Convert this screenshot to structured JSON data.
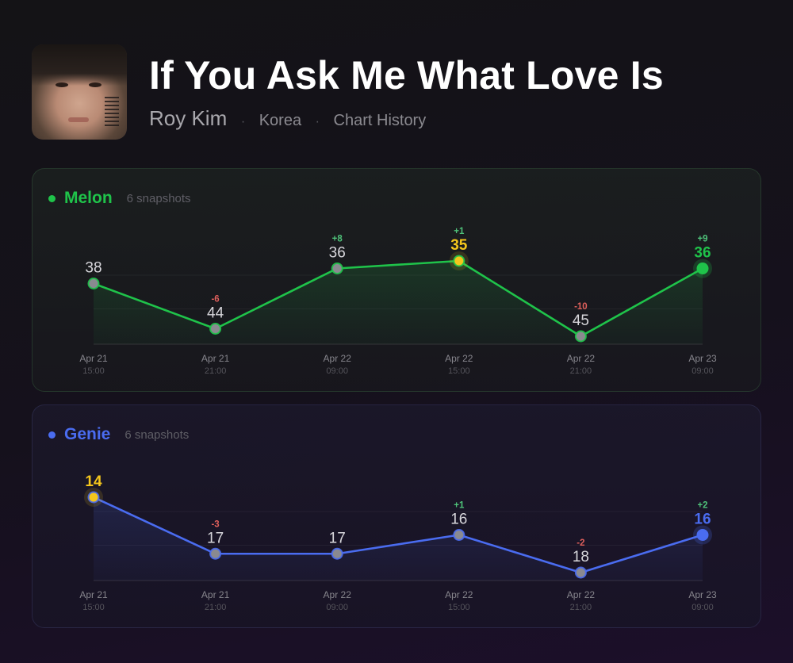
{
  "song": {
    "title": "If You Ask Me What Love Is",
    "artist": "Roy Kim",
    "region": "Korea",
    "section": "Chart History"
  },
  "cards": [
    {
      "platform": "Melon",
      "snapshots": "6 snapshots",
      "color": "#1fc34a"
    },
    {
      "platform": "Genie",
      "snapshots": "6 snapshots",
      "color": "#4a6cf0"
    }
  ],
  "chart_data": [
    {
      "type": "line",
      "name": "Melon",
      "x": [
        "Apr 21 15:00",
        "Apr 21 21:00",
        "Apr 22 09:00",
        "Apr 22 15:00",
        "Apr 22 21:00",
        "Apr 23 09:00"
      ],
      "x_date": [
        "Apr 21",
        "Apr 21",
        "Apr 22",
        "Apr 22",
        "Apr 22",
        "Apr 23"
      ],
      "x_time": [
        "15:00",
        "21:00",
        "09:00",
        "15:00",
        "21:00",
        "09:00"
      ],
      "ranks": [
        38,
        44,
        36,
        35,
        45,
        36
      ],
      "changes": [
        "",
        "-6",
        "+8",
        "+1",
        "-10",
        "+9"
      ],
      "best_index": 3,
      "latest_index": 5,
      "color": "#1fc34a",
      "highlight_color": "#f4c61c",
      "up_color": "#4fc37a",
      "down_color": "#e0605c"
    },
    {
      "type": "line",
      "name": "Genie",
      "x": [
        "Apr 21 15:00",
        "Apr 21 21:00",
        "Apr 22 09:00",
        "Apr 22 15:00",
        "Apr 22 21:00",
        "Apr 23 09:00"
      ],
      "x_date": [
        "Apr 21",
        "Apr 21",
        "Apr 22",
        "Apr 22",
        "Apr 22",
        "Apr 23"
      ],
      "x_time": [
        "15:00",
        "21:00",
        "09:00",
        "15:00",
        "21:00",
        "09:00"
      ],
      "ranks": [
        14,
        17,
        17,
        16,
        18,
        16
      ],
      "changes": [
        "",
        "-3",
        "",
        "+1",
        "-2",
        "+2"
      ],
      "best_index": 0,
      "latest_index": 5,
      "color": "#4a6cf0",
      "highlight_color": "#f4c61c",
      "up_color": "#4fc37a",
      "down_color": "#e0605c"
    }
  ]
}
